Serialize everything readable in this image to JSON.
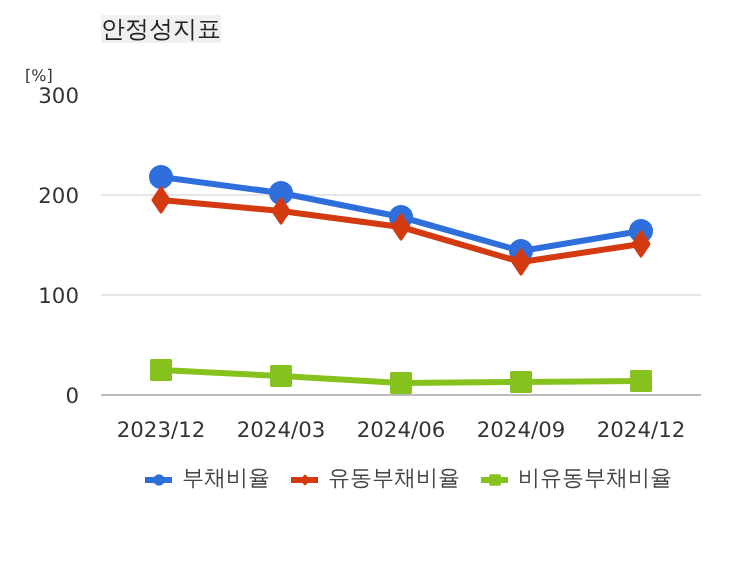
{
  "chart_data": {
    "type": "line",
    "title": "안정성지표",
    "ylabel": "[%]",
    "categories": [
      "2023/12",
      "2024/03",
      "2024/06",
      "2024/09",
      "2024/12"
    ],
    "series": [
      {
        "name": "부채비율",
        "color": "#2f6fdc",
        "marker": "circle",
        "values": [
          218,
          202,
          178,
          144,
          164
        ]
      },
      {
        "name": "유동부채비율",
        "color": "#d33a10",
        "marker": "diamond",
        "values": [
          195,
          184,
          168,
          133,
          151
        ]
      },
      {
        "name": "비유동부채비율",
        "color": "#86c21e",
        "marker": "square",
        "values": [
          25,
          19,
          12,
          13,
          14
        ]
      }
    ],
    "ylim": [
      0,
      300
    ],
    "yticks": [
      0,
      100,
      200,
      300
    ],
    "grid": "y",
    "legend": "bottom",
    "line_style": "solid"
  }
}
